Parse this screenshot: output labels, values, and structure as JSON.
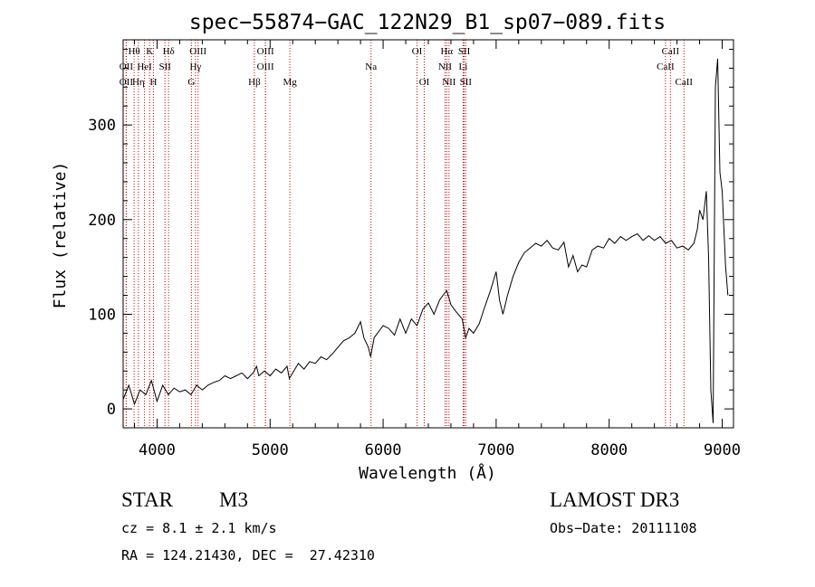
{
  "chart_data": {
    "type": "line",
    "title": "spec−55874−GAC_122N29_B1_sp07−089.fits",
    "xlabel": "Wavelength (Å)",
    "ylabel": "Flux (relative)",
    "xlim": [
      3700,
      9100
    ],
    "ylim": [
      -20,
      390
    ],
    "xticks": [
      4000,
      5000,
      6000,
      7000,
      8000,
      9000
    ],
    "yticks": [
      0,
      100,
      200,
      300
    ],
    "series": [
      {
        "name": "flux",
        "x": [
          3700,
          3750,
          3800,
          3850,
          3900,
          3950,
          4000,
          4050,
          4100,
          4150,
          4200,
          4250,
          4300,
          4350,
          4400,
          4450,
          4500,
          4550,
          4600,
          4650,
          4700,
          4750,
          4800,
          4850,
          4880,
          4900,
          4950,
          5000,
          5050,
          5100,
          5150,
          5170,
          5200,
          5250,
          5300,
          5350,
          5400,
          5450,
          5500,
          5550,
          5600,
          5650,
          5700,
          5750,
          5800,
          5830,
          5870,
          5890,
          5920,
          5950,
          6000,
          6050,
          6100,
          6150,
          6200,
          6250,
          6300,
          6350,
          6400,
          6450,
          6500,
          6530,
          6563,
          6600,
          6650,
          6700,
          6730,
          6760,
          6800,
          6850,
          6900,
          6950,
          7000,
          7030,
          7060,
          7100,
          7150,
          7200,
          7250,
          7300,
          7350,
          7400,
          7450,
          7500,
          7550,
          7600,
          7640,
          7680,
          7720,
          7760,
          7800,
          7850,
          7900,
          7950,
          8000,
          8050,
          8100,
          8150,
          8200,
          8250,
          8300,
          8350,
          8400,
          8450,
          8500,
          8550,
          8600,
          8650,
          8700,
          8750,
          8780,
          8800,
          8830,
          8860,
          8880,
          8900,
          8920,
          8940,
          8960,
          8980,
          9000,
          9030,
          9050
        ],
        "y": [
          10,
          25,
          5,
          20,
          15,
          30,
          8,
          25,
          15,
          22,
          18,
          20,
          15,
          25,
          20,
          25,
          28,
          30,
          35,
          32,
          35,
          38,
          32,
          38,
          45,
          35,
          40,
          35,
          42,
          38,
          45,
          32,
          38,
          48,
          42,
          50,
          48,
          55,
          52,
          58,
          65,
          72,
          75,
          80,
          92,
          75,
          65,
          55,
          75,
          80,
          88,
          85,
          78,
          95,
          80,
          95,
          88,
          105,
          112,
          100,
          115,
          120,
          125,
          110,
          102,
          95,
          75,
          85,
          80,
          90,
          108,
          125,
          145,
          115,
          100,
          120,
          140,
          155,
          165,
          170,
          175,
          172,
          178,
          170,
          168,
          176,
          150,
          162,
          145,
          152,
          150,
          168,
          172,
          170,
          180,
          175,
          182,
          178,
          182,
          185,
          178,
          183,
          178,
          182,
          175,
          178,
          170,
          172,
          168,
          175,
          190,
          210,
          200,
          230,
          160,
          20,
          -15,
          340,
          370,
          250,
          230,
          150,
          120
        ]
      }
    ],
    "line_markers": [
      {
        "label": "Hθ",
        "wavelength": 3797,
        "row": 0
      },
      {
        "label": "OII",
        "wavelength": 3727,
        "row": 1
      },
      {
        "label": "OII",
        "wavelength": 3727,
        "row": 2
      },
      {
        "label": "K",
        "wavelength": 3934,
        "row": 0
      },
      {
        "label": "HeI",
        "wavelength": 3889,
        "row": 1
      },
      {
        "label": "Hη",
        "wavelength": 3835,
        "row": 2
      },
      {
        "label": "Hδ",
        "wavelength": 4102,
        "row": 0
      },
      {
        "label": "SII",
        "wavelength": 4070,
        "row": 1
      },
      {
        "label": "H",
        "wavelength": 3968,
        "row": 2
      },
      {
        "label": "OIII",
        "wavelength": 4363,
        "row": 0
      },
      {
        "label": "Hγ",
        "wavelength": 4340,
        "row": 1
      },
      {
        "label": "G",
        "wavelength": 4304,
        "row": 2
      },
      {
        "label": "OIII",
        "wavelength": 4959,
        "row": 0
      },
      {
        "label": "OIII",
        "wavelength": 4959,
        "row": 1
      },
      {
        "label": "Hβ",
        "wavelength": 4861,
        "row": 2
      },
      {
        "label": "Mg",
        "wavelength": 5175,
        "row": 2
      },
      {
        "label": "Na",
        "wavelength": 5893,
        "row": 1
      },
      {
        "label": "OI",
        "wavelength": 6300,
        "row": 0
      },
      {
        "label": "OI",
        "wavelength": 6364,
        "row": 2
      },
      {
        "label": "Hα",
        "wavelength": 6563,
        "row": 0
      },
      {
        "label": "SII",
        "wavelength": 6717,
        "row": 0
      },
      {
        "label": "NII",
        "wavelength": 6548,
        "row": 1
      },
      {
        "label": "Li",
        "wavelength": 6708,
        "row": 1
      },
      {
        "label": "NII",
        "wavelength": 6583,
        "row": 2
      },
      {
        "label": "SII",
        "wavelength": 6731,
        "row": 2
      },
      {
        "label": "CaII",
        "wavelength": 8542,
        "row": 0
      },
      {
        "label": "CaII",
        "wavelength": 8498,
        "row": 1
      },
      {
        "label": "CaII",
        "wavelength": 8662,
        "row": 2
      }
    ],
    "marker_color": "#cc0000",
    "line_color": "#000000"
  },
  "info": {
    "class": "STAR",
    "subclass": "M3",
    "survey": "LAMOST DR3",
    "cz": "cz = 8.1 ± 2.1 km/s",
    "obs_date": "Obs−Date: 20111108",
    "radec": "RA = 124.21430, DEC =  27.42310"
  }
}
